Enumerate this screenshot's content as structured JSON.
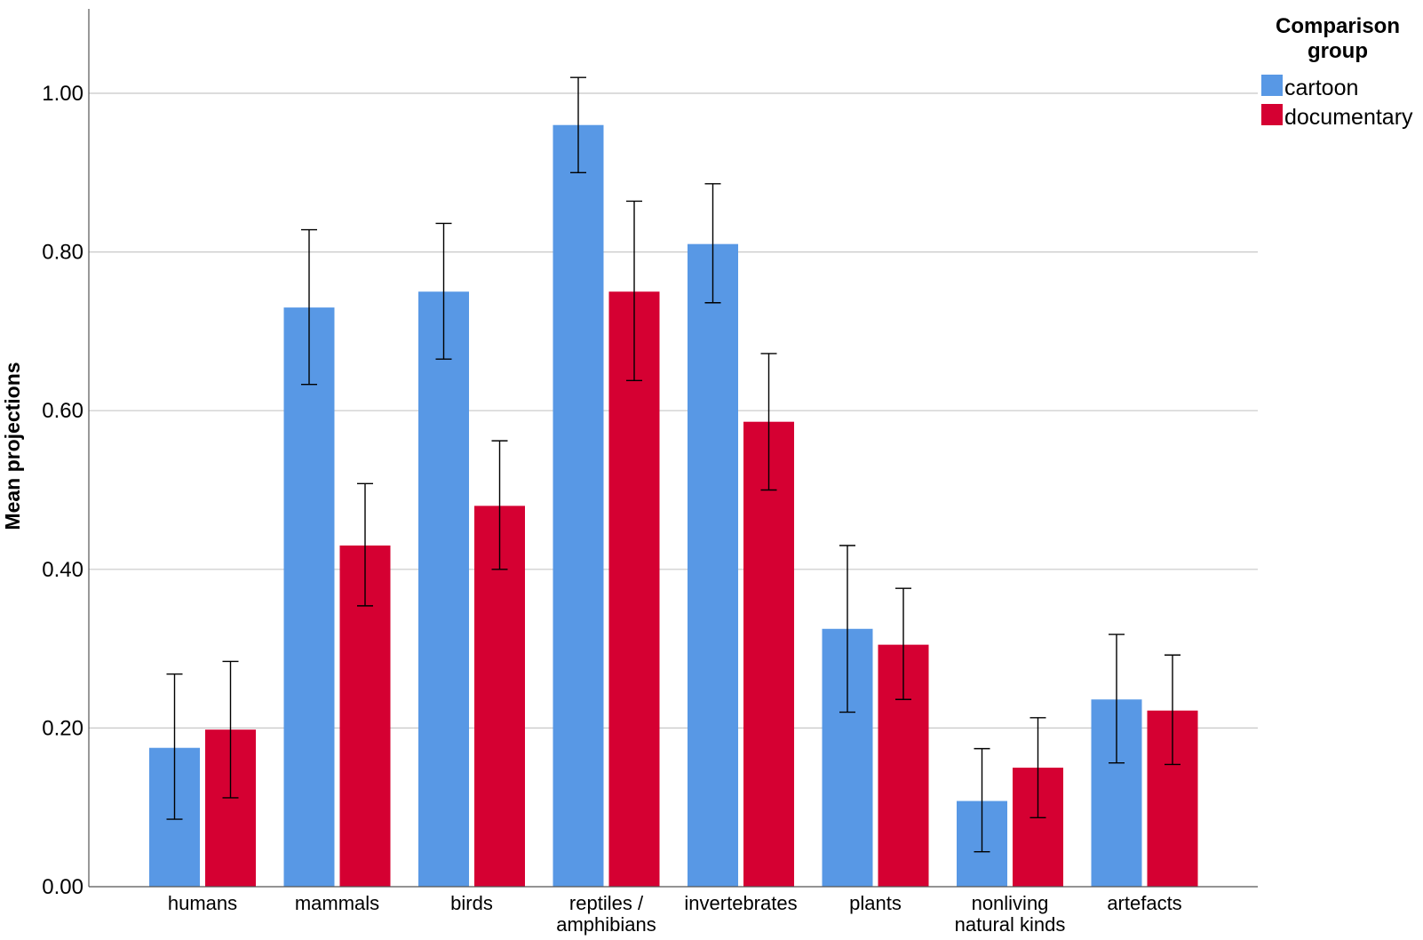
{
  "chart_data": {
    "type": "bar",
    "title": "",
    "xlabel": "",
    "ylabel": "Mean projections",
    "ylim": [
      0,
      1.1
    ],
    "yticks": [
      "0.00",
      "0.20",
      "0.40",
      "0.60",
      "0.80",
      "1.00"
    ],
    "ytick_values": [
      0,
      0.2,
      0.4,
      0.6,
      0.8,
      1.0
    ],
    "grid": true,
    "categories": [
      [
        "humans"
      ],
      [
        "mammals"
      ],
      [
        "birds"
      ],
      [
        "reptiles /",
        "amphibians"
      ],
      [
        "invertebrates"
      ],
      [
        "plants"
      ],
      [
        "nonliving",
        "natural kinds"
      ],
      [
        "artefacts"
      ]
    ],
    "legend": {
      "title_lines": [
        "Comparison",
        "group"
      ],
      "placement": "top-right"
    },
    "series": [
      {
        "name": "cartoon",
        "color": "#5898E5",
        "values": [
          0.175,
          0.73,
          0.75,
          0.96,
          0.81,
          0.325,
          0.108,
          0.236
        ],
        "err_low": [
          0.085,
          0.633,
          0.665,
          0.9,
          0.736,
          0.22,
          0.044,
          0.156
        ],
        "err_high": [
          0.268,
          0.828,
          0.836,
          1.02,
          0.886,
          0.43,
          0.174,
          0.318
        ]
      },
      {
        "name": "documentary",
        "color": "#D50032",
        "values": [
          0.198,
          0.43,
          0.48,
          0.75,
          0.586,
          0.305,
          0.15,
          0.222
        ],
        "err_low": [
          0.112,
          0.354,
          0.4,
          0.638,
          0.5,
          0.236,
          0.087,
          0.154
        ],
        "err_high": [
          0.284,
          0.508,
          0.562,
          0.864,
          0.672,
          0.376,
          0.213,
          0.292
        ]
      }
    ]
  }
}
